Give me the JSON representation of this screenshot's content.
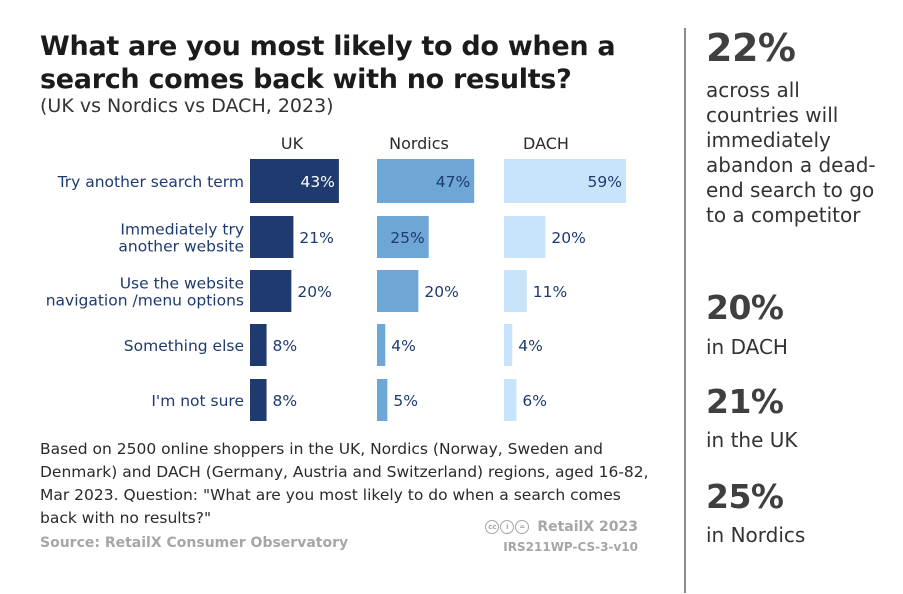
{
  "title": "What are you most likely to do when a search comes back with no results?",
  "subtitle": "(UK vs Nordics vs DACH, 2023)",
  "chart_data": {
    "type": "bar",
    "orientation": "horizontal",
    "layout": "small-multiples",
    "categories": [
      [
        "Try another search term"
      ],
      [
        "Immediately try",
        "another website"
      ],
      [
        "Use the website",
        "navigation /menu options"
      ],
      [
        "Something else"
      ],
      [
        "I'm not sure"
      ]
    ],
    "series": [
      {
        "name": "UK",
        "values": [
          43,
          21,
          20,
          8,
          8
        ],
        "labels": [
          "43%",
          "21%",
          "20%",
          "8%",
          "8%"
        ],
        "color": "#1f3a6e"
      },
      {
        "name": "Nordics",
        "values": [
          47,
          25,
          20,
          4,
          5
        ],
        "labels": [
          "47%",
          "25%",
          "20%",
          "4%",
          "5%"
        ],
        "color": "#6ea6d6"
      },
      {
        "name": "DACH",
        "values": [
          59,
          20,
          11,
          4,
          6
        ],
        "labels": [
          "59%",
          "20%",
          "11%",
          "4%",
          "6%"
        ],
        "color": "#c8e4fa"
      }
    ],
    "unit": "%",
    "grid": false
  },
  "note": "Based on 2500 online shoppers in the UK, Nordics (Norway, Sweden and Denmark) and DACH (Germany, Austria and Switzerland) regions, aged 16-82, Mar 2023. Question: \"What are you most likely to do when a search comes back with no results?\"",
  "source": "Source: RetailX Consumer Observatory",
  "brand": "RetailX 2023",
  "doc_id": "IRS211WP-CS-3-v10",
  "sidebar": {
    "headline_value": "22%",
    "headline_text": "across all countries will immediately abandon a dead-end search to go to a competitor",
    "stats": [
      {
        "value": "20%",
        "label": "in DACH"
      },
      {
        "value": "21%",
        "label": "in the UK"
      },
      {
        "value": "25%",
        "label": "in Nordics"
      }
    ]
  },
  "colors": {
    "uk": "#1f3a6e",
    "nordics": "#6ea6d6",
    "dach": "#c8e4fa",
    "divider": "#8c8c8c",
    "muted": "#a6a6a6"
  }
}
